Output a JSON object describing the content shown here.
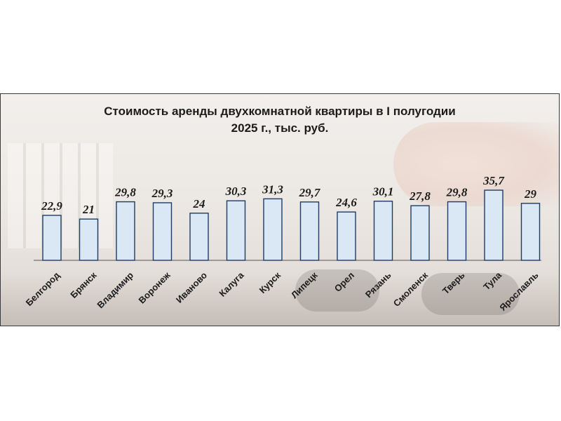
{
  "chart_data": {
    "type": "bar",
    "title_lines": [
      "Стоимость аренды двухкомнатной  квартиры в I полугодии",
      "2025 г., тыс. руб."
    ],
    "categories": [
      "Белгород",
      "Брянск",
      "Владимир",
      "Воронеж",
      "Иваново",
      "Калуга",
      "Курск",
      "Липецк",
      "Орел",
      "Рязань",
      "Смоленск",
      "Тверь",
      "Тула",
      "Ярославль"
    ],
    "values": [
      22.9,
      21,
      29.8,
      29.3,
      24,
      30.3,
      31.3,
      29.7,
      24.6,
      30.1,
      27.8,
      29.8,
      35.7,
      29
    ],
    "value_labels": [
      "22,9",
      "21",
      "29,8",
      "29,3",
      "24",
      "30,3",
      "31,3",
      "29,7",
      "24,6",
      "30,1",
      "27,8",
      "29,8",
      "35,7",
      "29"
    ],
    "xlabel": "",
    "ylabel": "",
    "ylim": [
      0,
      38
    ],
    "grid": false,
    "legend": "none"
  },
  "colors": {
    "bar_fill": "#dae7f5",
    "bar_stroke": "#1f3c64",
    "text": "#1b1b1b"
  }
}
